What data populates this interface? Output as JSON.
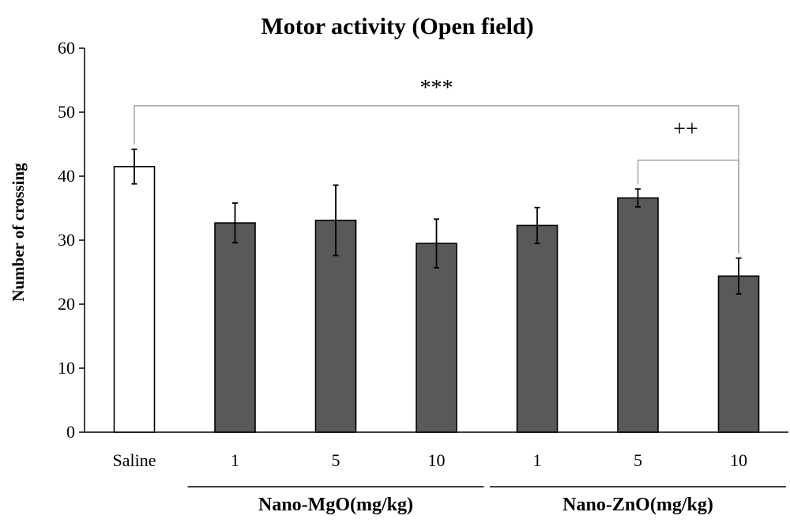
{
  "chart_data": {
    "type": "bar",
    "title": "Motor activity (Open field)",
    "ylabel": "Number of crossing",
    "xlabel": "",
    "ylim": [
      0,
      60
    ],
    "yticks": [
      0,
      10,
      20,
      30,
      40,
      50,
      60
    ],
    "categories": [
      "Saline",
      "1",
      "5",
      "10",
      "1",
      "5",
      "10"
    ],
    "values": [
      41.5,
      32.7,
      33.1,
      29.5,
      32.3,
      36.6,
      24.4
    ],
    "errors": [
      2.7,
      3.1,
      5.5,
      3.8,
      2.8,
      1.4,
      2.8
    ],
    "bar_colors": [
      "#ffffff",
      "#595959",
      "#595959",
      "#595959",
      "#595959",
      "#595959",
      "#595959"
    ],
    "groups": [
      {
        "label": "Nano-MgO(mg/kg)",
        "start": 1,
        "end": 3
      },
      {
        "label": "Nano-ZnO(mg/kg)",
        "start": 4,
        "end": 6
      }
    ],
    "annotations": [
      {
        "text": "***",
        "from": 0,
        "to": 6,
        "level": 51
      },
      {
        "text": "++",
        "from": 5,
        "to": 6,
        "level": 42.5
      }
    ],
    "grid": false,
    "legend": "none"
  }
}
